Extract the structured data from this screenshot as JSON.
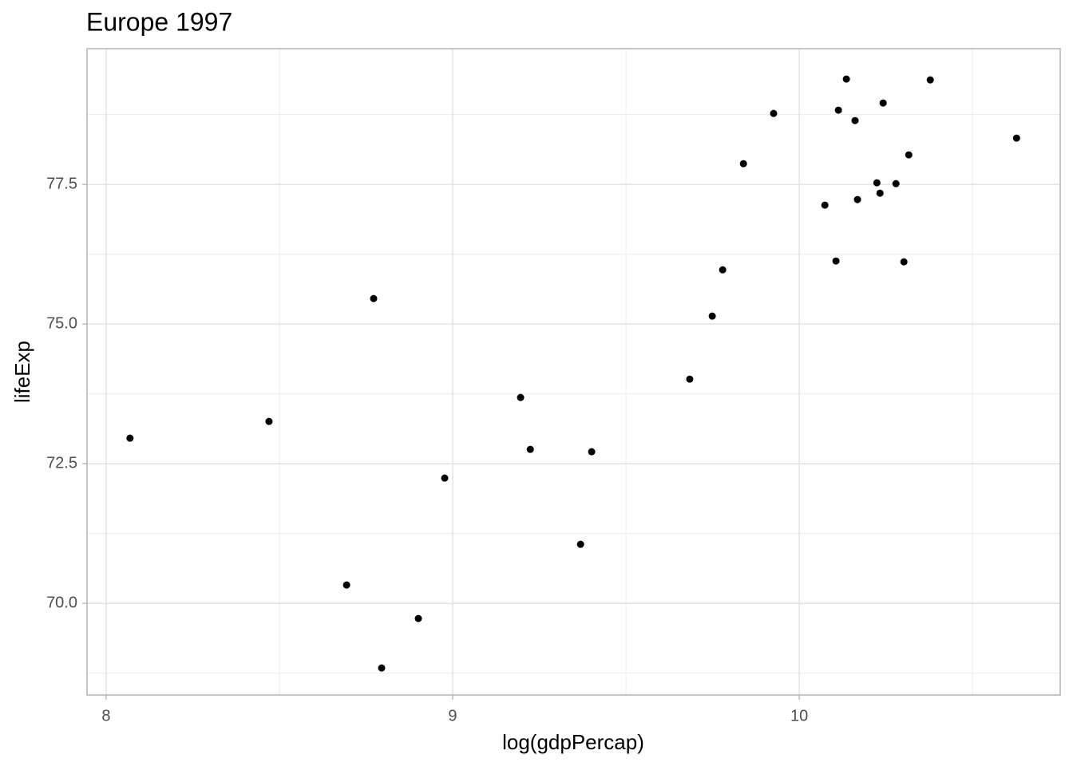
{
  "chart_data": {
    "type": "scatter",
    "title": "Europe 1997",
    "x_label": "log(gdpPercap)",
    "y_label": "lifeExp",
    "color": "#000000",
    "xlim": [
      7.945,
      10.753
    ],
    "ylim": [
      68.36,
      79.93
    ],
    "xticks": [
      8,
      9,
      10
    ],
    "xminorticks": [
      8.5,
      9.5,
      10.5
    ],
    "yticks": [
      {
        "value": 70,
        "label": "70.0"
      },
      72.5,
      {
        "value": 75,
        "label": "75.0"
      },
      77.5
    ],
    "yminorticks": [
      68.75,
      71.25,
      73.75,
      76.25,
      78.75
    ],
    "grid": true,
    "x": [
      8.069,
      8.47,
      8.772,
      8.694,
      8.901,
      8.795,
      8.977,
      9.196,
      9.224,
      9.401,
      9.369,
      9.684,
      9.749,
      9.779,
      9.839,
      9.926,
      10.074,
      10.113,
      10.106,
      10.136,
      10.161,
      10.168,
      10.224,
      10.233,
      10.242,
      10.279,
      10.302,
      10.316,
      10.378,
      10.627
    ],
    "values": [
      72.957,
      73.257,
      75.457,
      70.329,
      69.729,
      68.843,
      72.243,
      73.686,
      72.757,
      72.714,
      71.057,
      74.014,
      75.143,
      75.971,
      77.871,
      78.771,
      77.129,
      78.829,
      76.129,
      79.386,
      78.643,
      77.229,
      77.529,
      77.343,
      78.957,
      77.514,
      76.114,
      78.029,
      79.371,
      78.329
    ]
  }
}
